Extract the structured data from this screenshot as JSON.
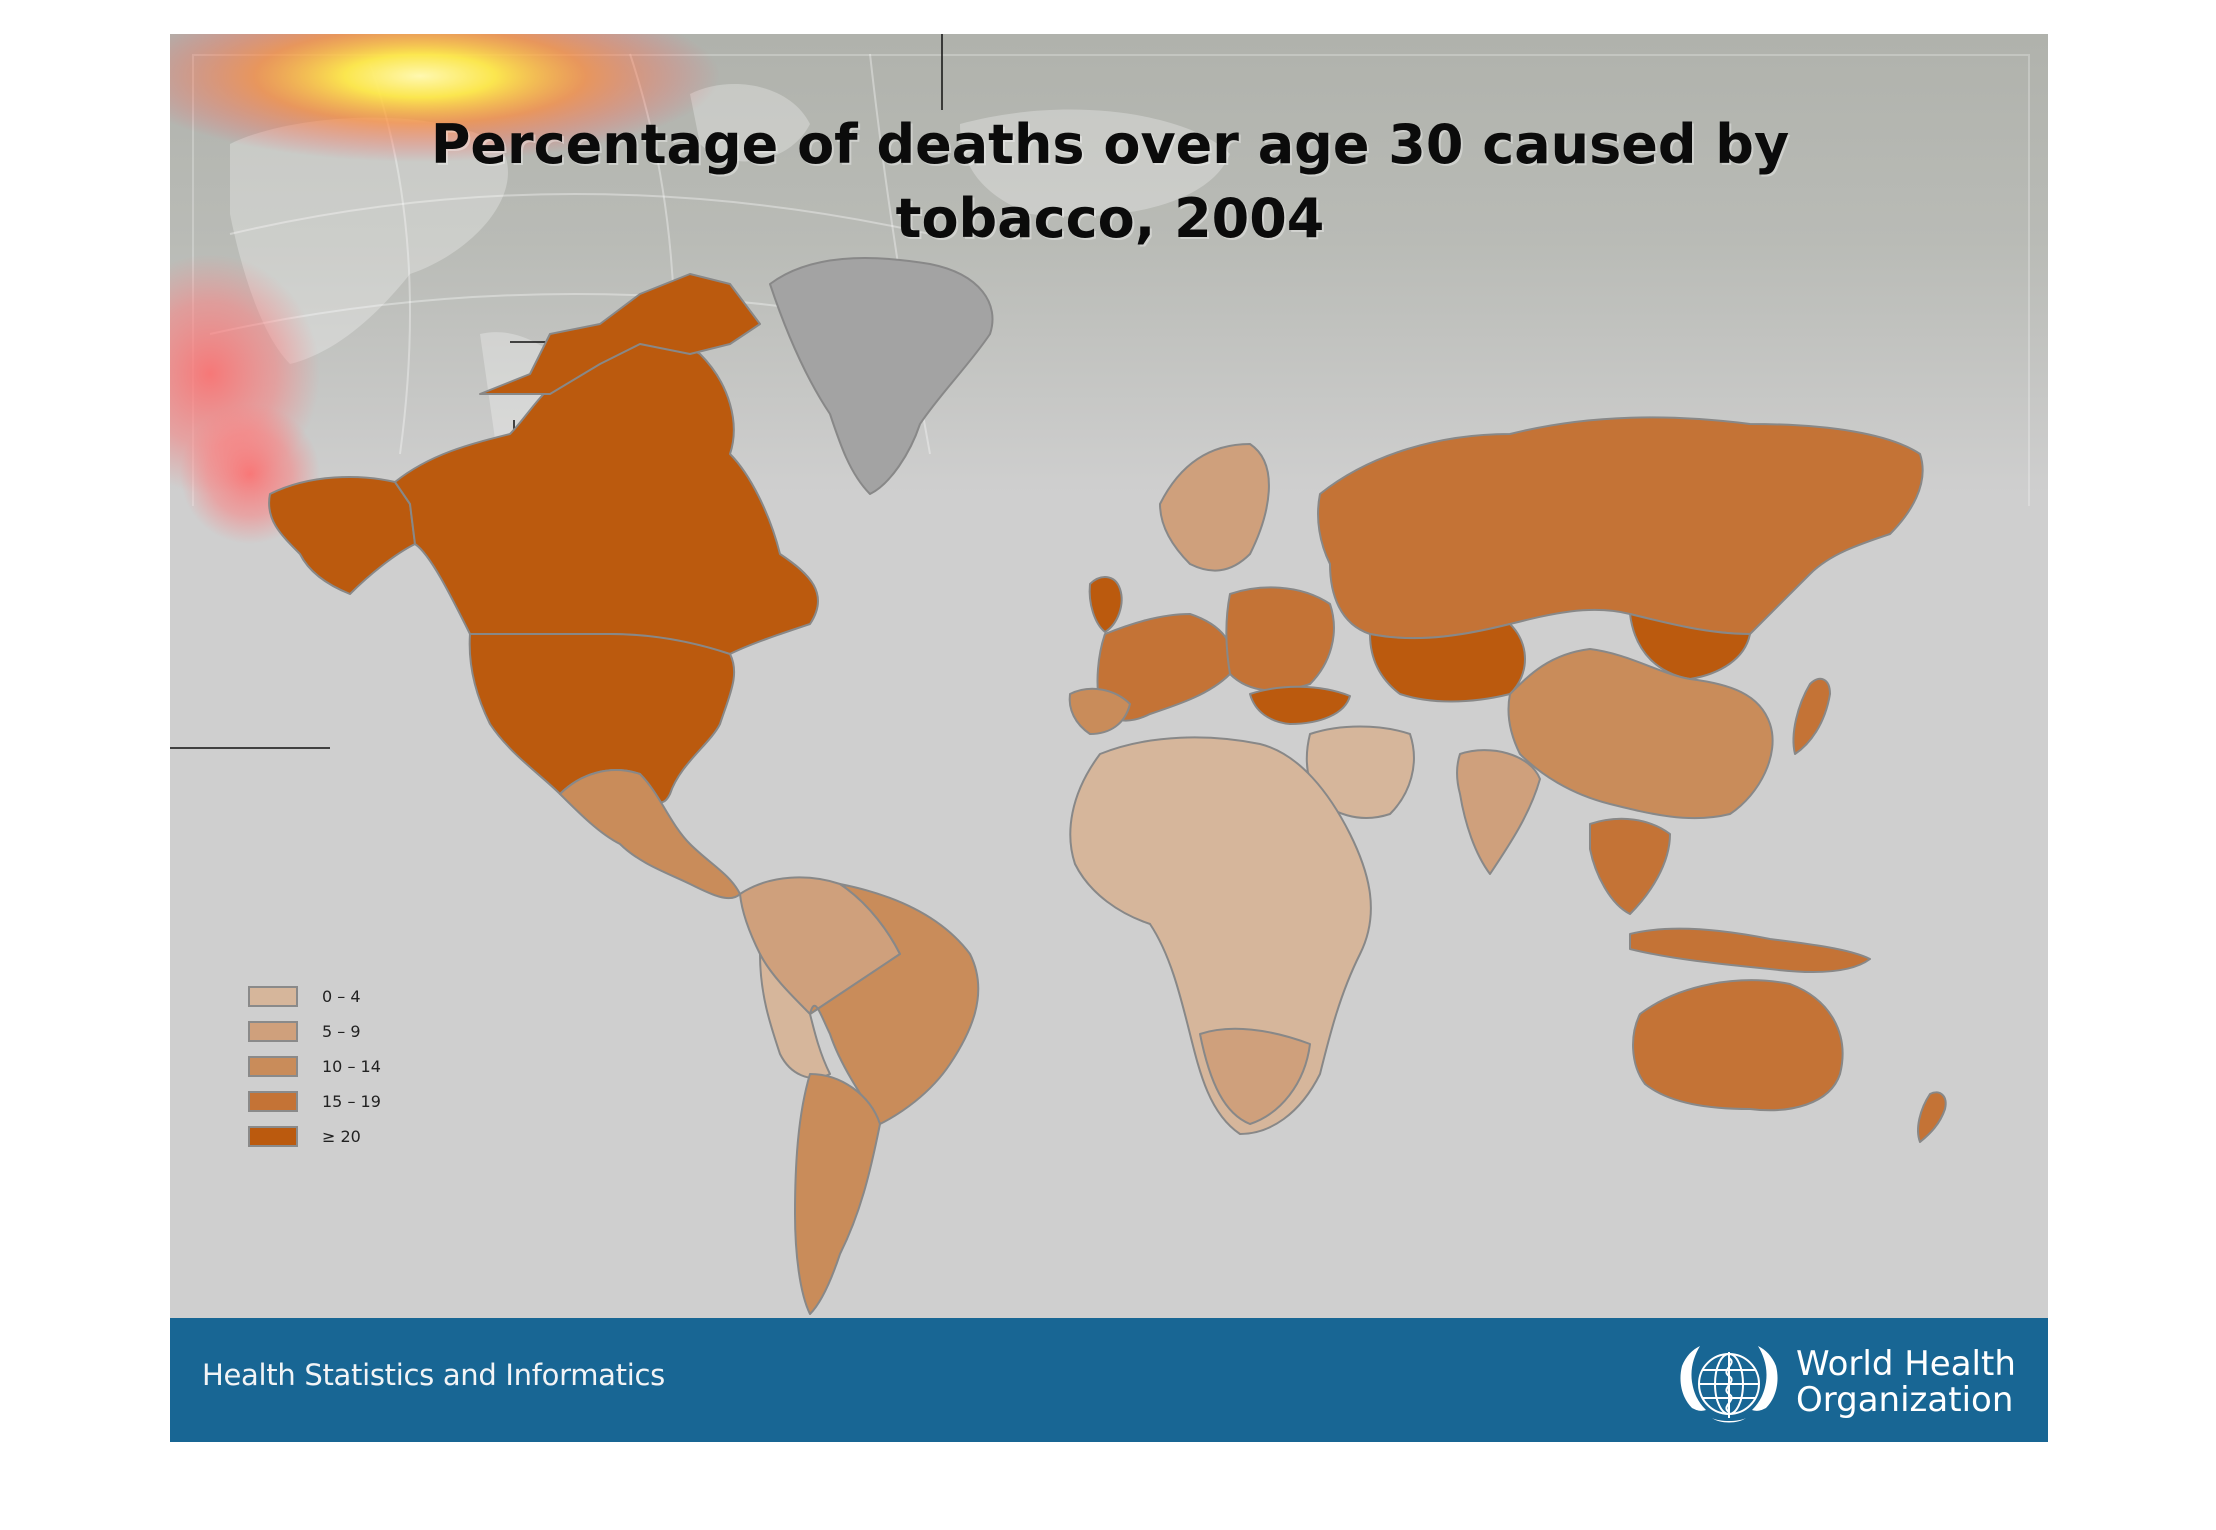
{
  "slide": {
    "title": "Percentage of deaths over age 30 caused by tobacco, 2004"
  },
  "legend": {
    "items": [
      {
        "label": "0 – 4",
        "color": "#d6b69b"
      },
      {
        "label": "5 – 9",
        "color": "#cfa07c"
      },
      {
        "label": "10 – 14",
        "color": "#c98c5a"
      },
      {
        "label": "15 – 19",
        "color": "#c47336"
      },
      {
        "label": "≥ 20",
        "color": "#bb5a0e"
      }
    ],
    "no_data_color": "#a3a3a3"
  },
  "footer": {
    "department": "Health Statistics and Informatics",
    "organization_line1": "World Health",
    "organization_line2": "Organization",
    "logo_icon": "who-emblem-icon",
    "background_color": "#186694"
  },
  "regions": [
    {
      "region": "Alaska",
      "band": "≥ 20"
    },
    {
      "region": "Canada",
      "band": "≥ 20"
    },
    {
      "region": "United States",
      "band": "≥ 20"
    },
    {
      "region": "Greenland",
      "band": "no data"
    },
    {
      "region": "Mexico",
      "band": "10 – 14"
    },
    {
      "region": "Brazil",
      "band": "10 – 14"
    },
    {
      "region": "Argentina",
      "band": "10 – 14"
    },
    {
      "region": "Russian Federation",
      "band": "15 – 19"
    },
    {
      "region": "Kazakhstan",
      "band": "≥ 20"
    },
    {
      "region": "Mongolia",
      "band": "≥ 20"
    },
    {
      "region": "China",
      "band": "10 – 14"
    },
    {
      "region": "India",
      "band": "5 – 9"
    },
    {
      "region": "Africa",
      "band": "0 – 4"
    },
    {
      "region": "Australia",
      "band": "15 – 19"
    },
    {
      "region": "Turkey",
      "band": "≥ 20"
    },
    {
      "region": "Japan",
      "band": "15 – 19"
    },
    {
      "region": "New Zealand",
      "band": "15 – 19"
    }
  ]
}
